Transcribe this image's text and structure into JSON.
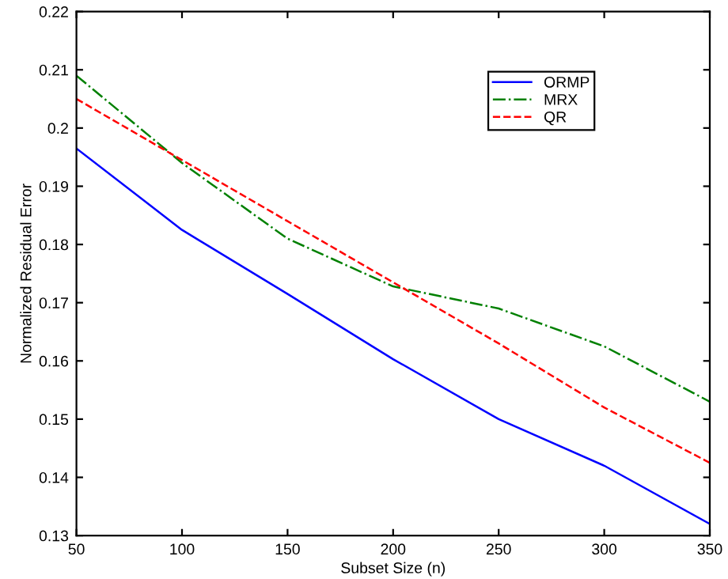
{
  "chart_data": {
    "type": "line",
    "xlabel": "Subset Size (n)",
    "ylabel": "Normalized Residual Error",
    "x": [
      50,
      100,
      150,
      200,
      250,
      300,
      350
    ],
    "series": [
      {
        "name": "ORMP",
        "color": "#0000ff",
        "line_style": "solid",
        "values": [
          0.1965,
          0.1825,
          0.1715,
          0.1603,
          0.15,
          0.142,
          0.132
        ]
      },
      {
        "name": "MRX",
        "color": "#008000",
        "line_style": "dashdot",
        "values": [
          0.209,
          0.194,
          0.181,
          0.1728,
          0.169,
          0.1625,
          0.153
        ]
      },
      {
        "name": "QR",
        "color": "#ff0000",
        "line_style": "dashed",
        "values": [
          0.205,
          0.1945,
          0.184,
          0.1735,
          0.163,
          0.152,
          0.1425
        ]
      }
    ],
    "xlim": [
      50,
      350
    ],
    "xticks": [
      50,
      100,
      150,
      200,
      250,
      300,
      350
    ],
    "ylim": [
      0.13,
      0.22
    ],
    "yticks": [
      0.13,
      0.14,
      0.15,
      0.16,
      0.17,
      0.18,
      0.19,
      0.2,
      0.21,
      0.22
    ],
    "grid": false,
    "legend": "top right",
    "marker": "none"
  }
}
